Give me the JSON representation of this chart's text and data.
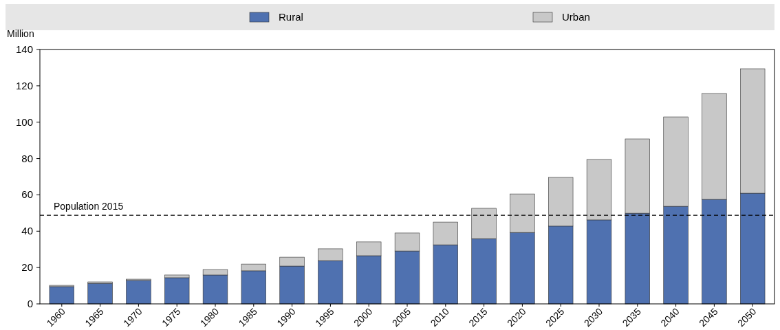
{
  "chart_data": {
    "type": "bar",
    "stacked": true,
    "ylabel": "Million",
    "categories": [
      "1960",
      "1965",
      "1970",
      "1975",
      "1980",
      "1985",
      "1990",
      "1995",
      "2000",
      "2005",
      "2010",
      "2015",
      "2020",
      "2025",
      "2030",
      "2035",
      "2040",
      "2045",
      "2050"
    ],
    "series": [
      {
        "name": "Rural",
        "color": "#4f71b0",
        "values": [
          9.5,
          11.3,
          12.9,
          14.4,
          15.9,
          18.2,
          20.8,
          23.8,
          26.5,
          29.1,
          32.5,
          35.9,
          39.3,
          42.8,
          46.2,
          49.9,
          53.7,
          57.5,
          60.9
        ]
      },
      {
        "name": "Urban",
        "color": "#c8c8c8",
        "values": [
          0.7,
          0.8,
          0.7,
          1.5,
          3,
          3.7,
          4.9,
          6.5,
          7.6,
          9.9,
          12.5,
          16.7,
          21.2,
          26.8,
          33.3,
          40.9,
          49.2,
          58.3,
          68.5
        ]
      }
    ],
    "ylim": [
      0,
      140
    ],
    "yticks": [
      0,
      20,
      40,
      60,
      80,
      100,
      120,
      140
    ],
    "grid": false,
    "legend": "top",
    "ref_lines": [
      {
        "axis": "y",
        "value": 48.8,
        "label": "Population 2015",
        "line_style": "dashed",
        "color": "#000000"
      }
    ]
  }
}
